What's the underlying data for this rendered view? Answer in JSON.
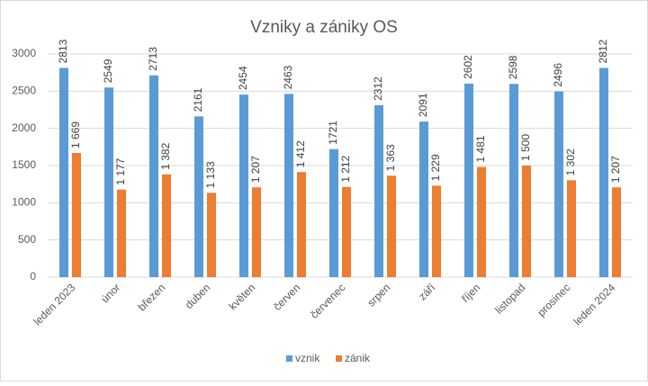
{
  "chart_data": {
    "type": "bar",
    "title": "Vzniky a zániky OS",
    "categories": [
      "leden 2023",
      "únor",
      "březen",
      "duben",
      "květen",
      "červen",
      "červenec",
      "srpen",
      "září",
      "říjen",
      "listopad",
      "prosinec",
      "leden 2024"
    ],
    "series": [
      {
        "name": "vznik",
        "color": "#5b9bd5",
        "values": [
          2813,
          2549,
          2713,
          2161,
          2454,
          2463,
          1721,
          2312,
          2091,
          2602,
          2598,
          2496,
          2812
        ]
      },
      {
        "name": "zánik",
        "color": "#ed7d31",
        "values": [
          1669,
          1177,
          1382,
          1133,
          1207,
          1412,
          1212,
          1363,
          1229,
          1481,
          1500,
          1302,
          1207
        ],
        "value_labels": [
          "1 669",
          "1 177",
          "1 382",
          "1 133",
          "1 207",
          "1 412",
          "1 212",
          "1 363",
          "1 229",
          "1 481",
          "1 500",
          "1 302",
          "1 207"
        ]
      }
    ],
    "ylim": [
      0,
      3000
    ],
    "yticks": [
      0,
      500,
      1000,
      1500,
      2000,
      2500,
      3000
    ],
    "grid": true,
    "legend": "bottom"
  }
}
